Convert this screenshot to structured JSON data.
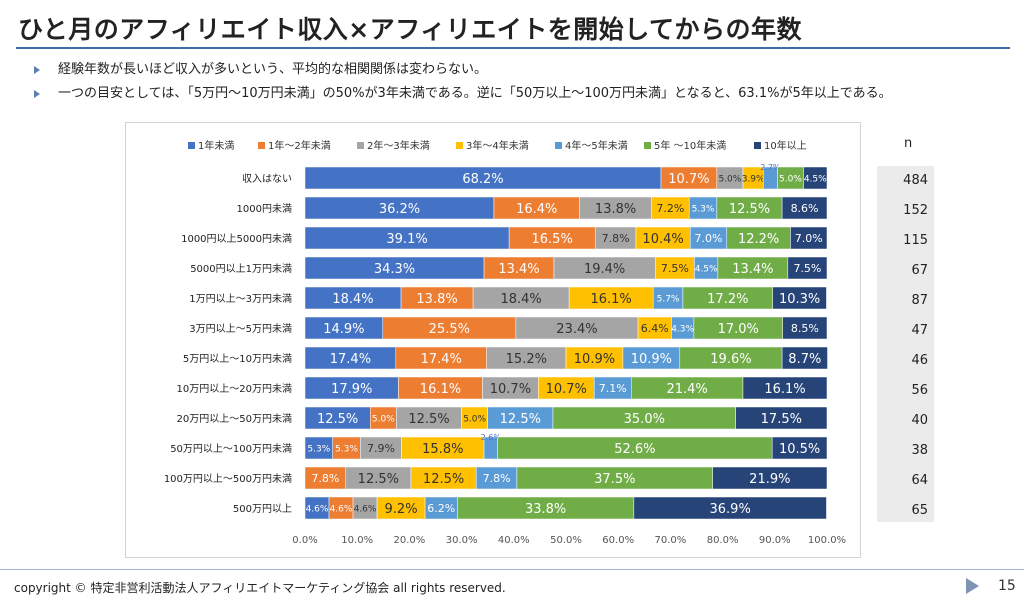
{
  "page": {
    "title": "ひと月のアフィリエイト収入×アフィリエイトを開始してからの年数",
    "bullets": [
      "経験年数が長いほど収入が多いという、平均的な相関関係は変わらない。",
      "一つの目安としては、「5万円〜10万円未満」の50%が3年未満である。逆に「50万以上〜100万円未満」となると、63.1%が5年以上である。"
    ],
    "n_header": "n",
    "copyright": "copyright © 特定非営利活動法人アフィリエイトマーケティング協会 all rights reserved.",
    "page_number": "15"
  },
  "chart_data": {
    "type": "bar",
    "orientation": "horizontal",
    "stacked": "100%",
    "legend_position": "top",
    "grid": false,
    "xlim": [
      0,
      100
    ],
    "xticks": [
      "0.0%",
      "10.0%",
      "20.0%",
      "30.0%",
      "40.0%",
      "50.0%",
      "60.0%",
      "70.0%",
      "80.0%",
      "90.0%",
      "100.0%"
    ],
    "categories": [
      "収入はない",
      "1000円未満",
      "1000円以上5000円未満",
      "5000円以上1万円未満",
      "1万円以上〜3万円未満",
      "3万円以上〜5万円未満",
      "5万円以上〜10万円未満",
      "10万円以上〜20万円未満",
      "20万円以上〜50万円未満",
      "50万円以上〜100万円未満",
      "100万円以上〜500万円未満",
      "500万円以上"
    ],
    "n": [
      "484",
      "152",
      "115",
      "67",
      "87",
      "47",
      "46",
      "56",
      "40",
      "38",
      "64",
      "65"
    ],
    "series": [
      {
        "name": "1年未満",
        "color": "#4472c4",
        "values": [
          68.2,
          36.2,
          39.1,
          34.3,
          18.4,
          14.9,
          17.4,
          17.9,
          12.5,
          5.3,
          0,
          4.6
        ]
      },
      {
        "name": "1年〜2年未満",
        "color": "#ed7d31",
        "values": [
          10.7,
          16.4,
          16.5,
          13.4,
          13.8,
          25.5,
          17.4,
          16.1,
          5.0,
          5.3,
          7.8,
          4.6
        ]
      },
      {
        "name": "2年〜3年未満",
        "color": "#a5a5a5",
        "values": [
          5.0,
          13.8,
          7.8,
          19.4,
          18.4,
          23.4,
          15.2,
          10.7,
          12.5,
          7.9,
          12.5,
          4.6
        ]
      },
      {
        "name": "3年〜4年未満",
        "color": "#ffc000",
        "values": [
          3.9,
          7.2,
          10.4,
          7.5,
          16.1,
          6.4,
          10.9,
          10.7,
          5.0,
          15.8,
          12.5,
          9.2
        ]
      },
      {
        "name": "4年〜5年未満",
        "color": "#5b9bd5",
        "values": [
          2.7,
          5.3,
          7.0,
          4.5,
          5.7,
          4.3,
          10.9,
          7.1,
          12.5,
          2.6,
          7.8,
          6.2
        ]
      },
      {
        "name": "5年 〜10年未満",
        "color": "#70ad47",
        "values": [
          5.0,
          12.5,
          12.2,
          13.4,
          17.2,
          17.0,
          19.6,
          21.4,
          35.0,
          52.6,
          37.5,
          33.8
        ]
      },
      {
        "name": "10年以上",
        "color": "#264478",
        "values": [
          4.5,
          8.6,
          7.0,
          7.5,
          10.3,
          8.5,
          8.7,
          16.1,
          17.5,
          10.5,
          21.9,
          36.9
        ]
      }
    ],
    "data_labels": [
      [
        "68.2%",
        "10.7%",
        "5.0%",
        "3.9%",
        "2.7%",
        "5.0%",
        "4.5%"
      ],
      [
        "36.2%",
        "16.4%",
        "13.8%",
        "7.2%",
        "5.3%",
        "12.5%",
        "8.6%"
      ],
      [
        "39.1%",
        "16.5%",
        "7.8%",
        "10.4%",
        "7.0%",
        "12.2%",
        "7.0%"
      ],
      [
        "34.3%",
        "13.4%",
        "19.4%",
        "7.5%",
        "4.5%",
        "13.4%",
        "7.5%"
      ],
      [
        "18.4%",
        "13.8%",
        "18.4%",
        "16.1%",
        "5.7%",
        "17.2%",
        "10.3%"
      ],
      [
        "14.9%",
        "25.5%",
        "23.4%",
        "6.4%",
        "4.3%",
        "17.0%",
        "8.5%"
      ],
      [
        "17.4%",
        "17.4%",
        "15.2%",
        "10.9%",
        "10.9%",
        "19.6%",
        "8.7%"
      ],
      [
        "17.9%",
        "16.1%",
        "10.7%",
        "10.7%",
        "7.1%",
        "21.4%",
        "16.1%"
      ],
      [
        "12.5%",
        "5.0%",
        "12.5%",
        "5.0%",
        "12.5%",
        "35.0%",
        "17.5%"
      ],
      [
        "5.3%",
        "5.3%",
        "7.9%",
        "15.8%",
        "2.6%",
        "52.6%",
        "10.5%"
      ],
      [
        "",
        "7.8%",
        "12.5%",
        "12.5%",
        "7.8%",
        "37.5%",
        "21.9%"
      ],
      [
        "4.6%",
        "4.6%",
        "4.6%",
        "9.2%",
        "6.2%",
        "33.8%",
        "36.9%"
      ]
    ]
  }
}
